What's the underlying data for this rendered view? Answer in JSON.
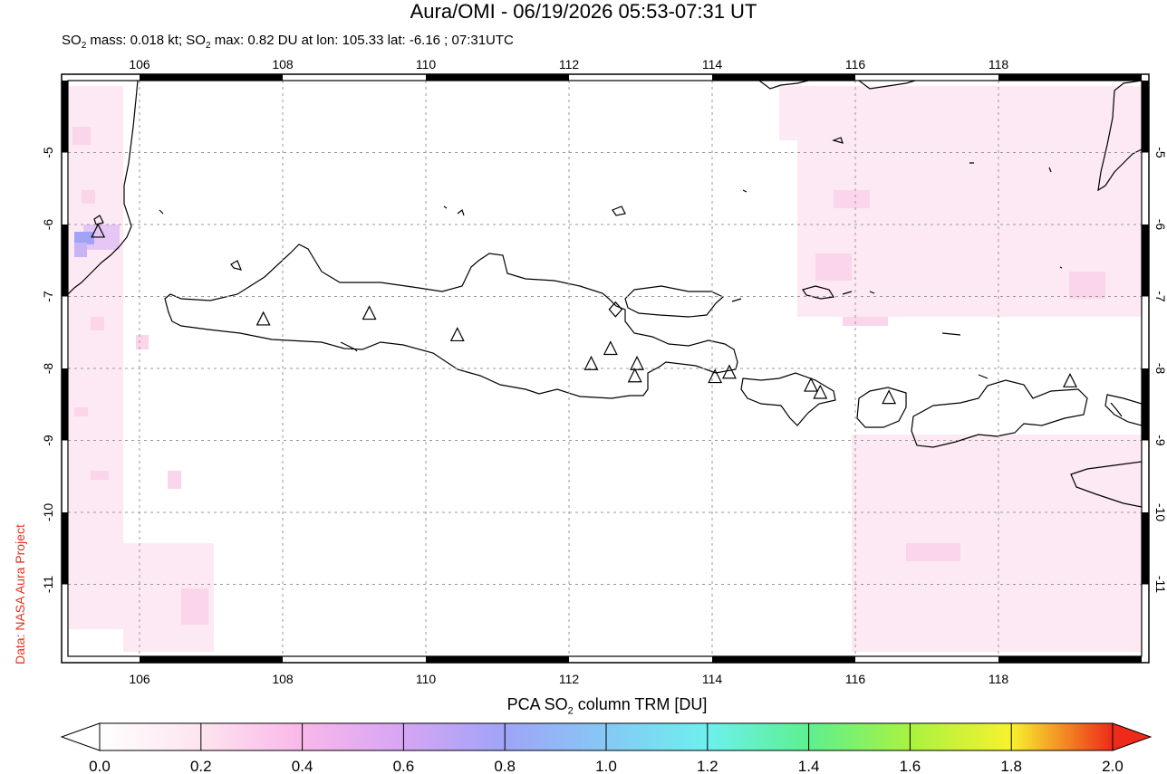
{
  "header": {
    "title": "Aura/OMI - 06/19/2026 05:53-07:31 UT",
    "subtitle_mass_prefix": "SO",
    "subtitle_mass_sub": "2",
    "subtitle_mass_rest": " mass: 0.018 kt; SO",
    "subtitle_max_sub": "2",
    "subtitle_max_rest": " max: 0.82 DU at lon: 105.33 lat: -6.16 ; 07:31UTC"
  },
  "credit": "Data: NASA Aura Project",
  "map": {
    "lon_range": [
      105.0,
      120.0
    ],
    "lat_range": [
      -12.0,
      -4.0
    ],
    "lon_ticks": [
      "106",
      "108",
      "110",
      "112",
      "114",
      "116",
      "118"
    ],
    "lat_ticks": [
      "-5",
      "-6",
      "-7",
      "-8",
      "-9",
      "-10",
      "-11"
    ],
    "grid": "dotted",
    "volcano_marker": "triangle-outline-icon",
    "max_marker": "diamond-outline-icon"
  },
  "colorbar": {
    "title_prefix": "PCA SO",
    "title_sub": "2",
    "title_rest": " column TRM [DU]",
    "range": [
      0.0,
      2.0
    ],
    "ticks": [
      "0.0",
      "0.2",
      "0.4",
      "0.6",
      "0.8",
      "1.0",
      "1.2",
      "1.4",
      "1.6",
      "1.8",
      "2.0"
    ],
    "colors": [
      "#ffffff",
      "#fde4ef",
      "#f9b7ea",
      "#d6a5f4",
      "#9fa4f7",
      "#86c8f5",
      "#6df0ee",
      "#5cf08f",
      "#a9f23f",
      "#f7f22d",
      "#f79a26",
      "#ee2a1a"
    ]
  }
}
